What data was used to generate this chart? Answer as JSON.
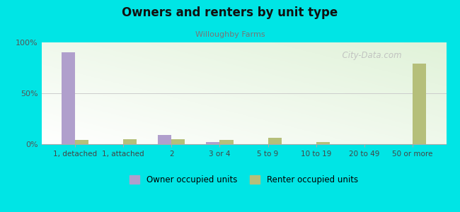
{
  "title": "Owners and renters by unit type",
  "subtitle": "Willoughby Farms",
  "categories": [
    "1, detached",
    "1, attached",
    "2",
    "3 or 4",
    "5 to 9",
    "10 to 19",
    "20 to 49",
    "50 or more"
  ],
  "owner_values": [
    90,
    0,
    9,
    2,
    0,
    0,
    0,
    0
  ],
  "renter_values": [
    4,
    5,
    5,
    4,
    6,
    2,
    0,
    79
  ],
  "owner_color": "#b09fcc",
  "renter_color": "#b5bf7a",
  "bg_color": "#00e5e5",
  "ylim": [
    0,
    100
  ],
  "yticks": [
    0,
    50,
    100
  ],
  "ytick_labels": [
    "0%",
    "50%",
    "100%"
  ],
  "bar_width": 0.28,
  "legend_owner": "Owner occupied units",
  "legend_renter": "Renter occupied units",
  "watermark": "  City-Data.com"
}
